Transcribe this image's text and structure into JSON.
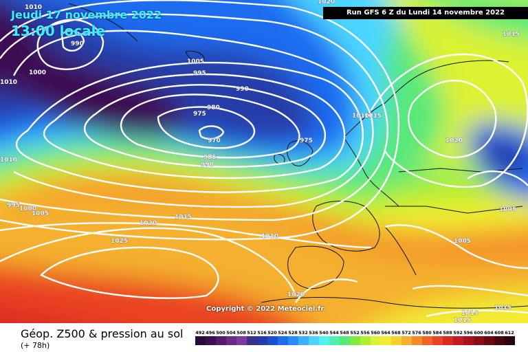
{
  "header": {
    "date": "Jeudi 17 novembre 2022",
    "time": "13:00 locale",
    "run": "Run GFS 6 Z du Lundi 14 novembre 2022"
  },
  "copyright": "Copyright © 2022 Meteociel.fr",
  "footer": {
    "parameter": "Géop. Z500 & pression au sol",
    "lead": "(+ 78h)"
  },
  "legend": {
    "values": [
      "492",
      "496",
      "500",
      "504",
      "508",
      "512",
      "516",
      "520",
      "524",
      "528",
      "532",
      "536",
      "540",
      "544",
      "548",
      "552",
      "556",
      "560",
      "564",
      "568",
      "572",
      "576",
      "580",
      "584",
      "588",
      "592",
      "596",
      "600",
      "604",
      "608",
      "612"
    ],
    "colors": [
      "#2a0a38",
      "#3d0f52",
      "#551a6e",
      "#6b2a86",
      "#7d3a9a",
      "#3a2f8a",
      "#253ca8",
      "#1c4fd0",
      "#1e6cf0",
      "#2c8cff",
      "#3cb0ff",
      "#4cd4ff",
      "#52f0ee",
      "#4ef0b0",
      "#58e878",
      "#80ea3e",
      "#b0ee32",
      "#dcf232",
      "#f2ec30",
      "#f4d030",
      "#f4b02e",
      "#f48a2a",
      "#f06426",
      "#ea4222",
      "#da2a22",
      "#c41a22",
      "#a8121e",
      "#8a0c1a",
      "#6a0a14",
      "#4a060e",
      "#2a0408"
    ]
  },
  "isobars": [
    "1010",
    "1010",
    "990",
    "1000",
    "1005",
    "995",
    "990",
    "980",
    "975",
    "970",
    "975",
    "985",
    "990",
    "1010",
    "995",
    "1000",
    "1005",
    "1020",
    "1015",
    "1025",
    "1010",
    "1010",
    "1015",
    "1020",
    "1015",
    "1005",
    "1005",
    "1020",
    "1015",
    "1015",
    "1015",
    "1020"
  ]
}
